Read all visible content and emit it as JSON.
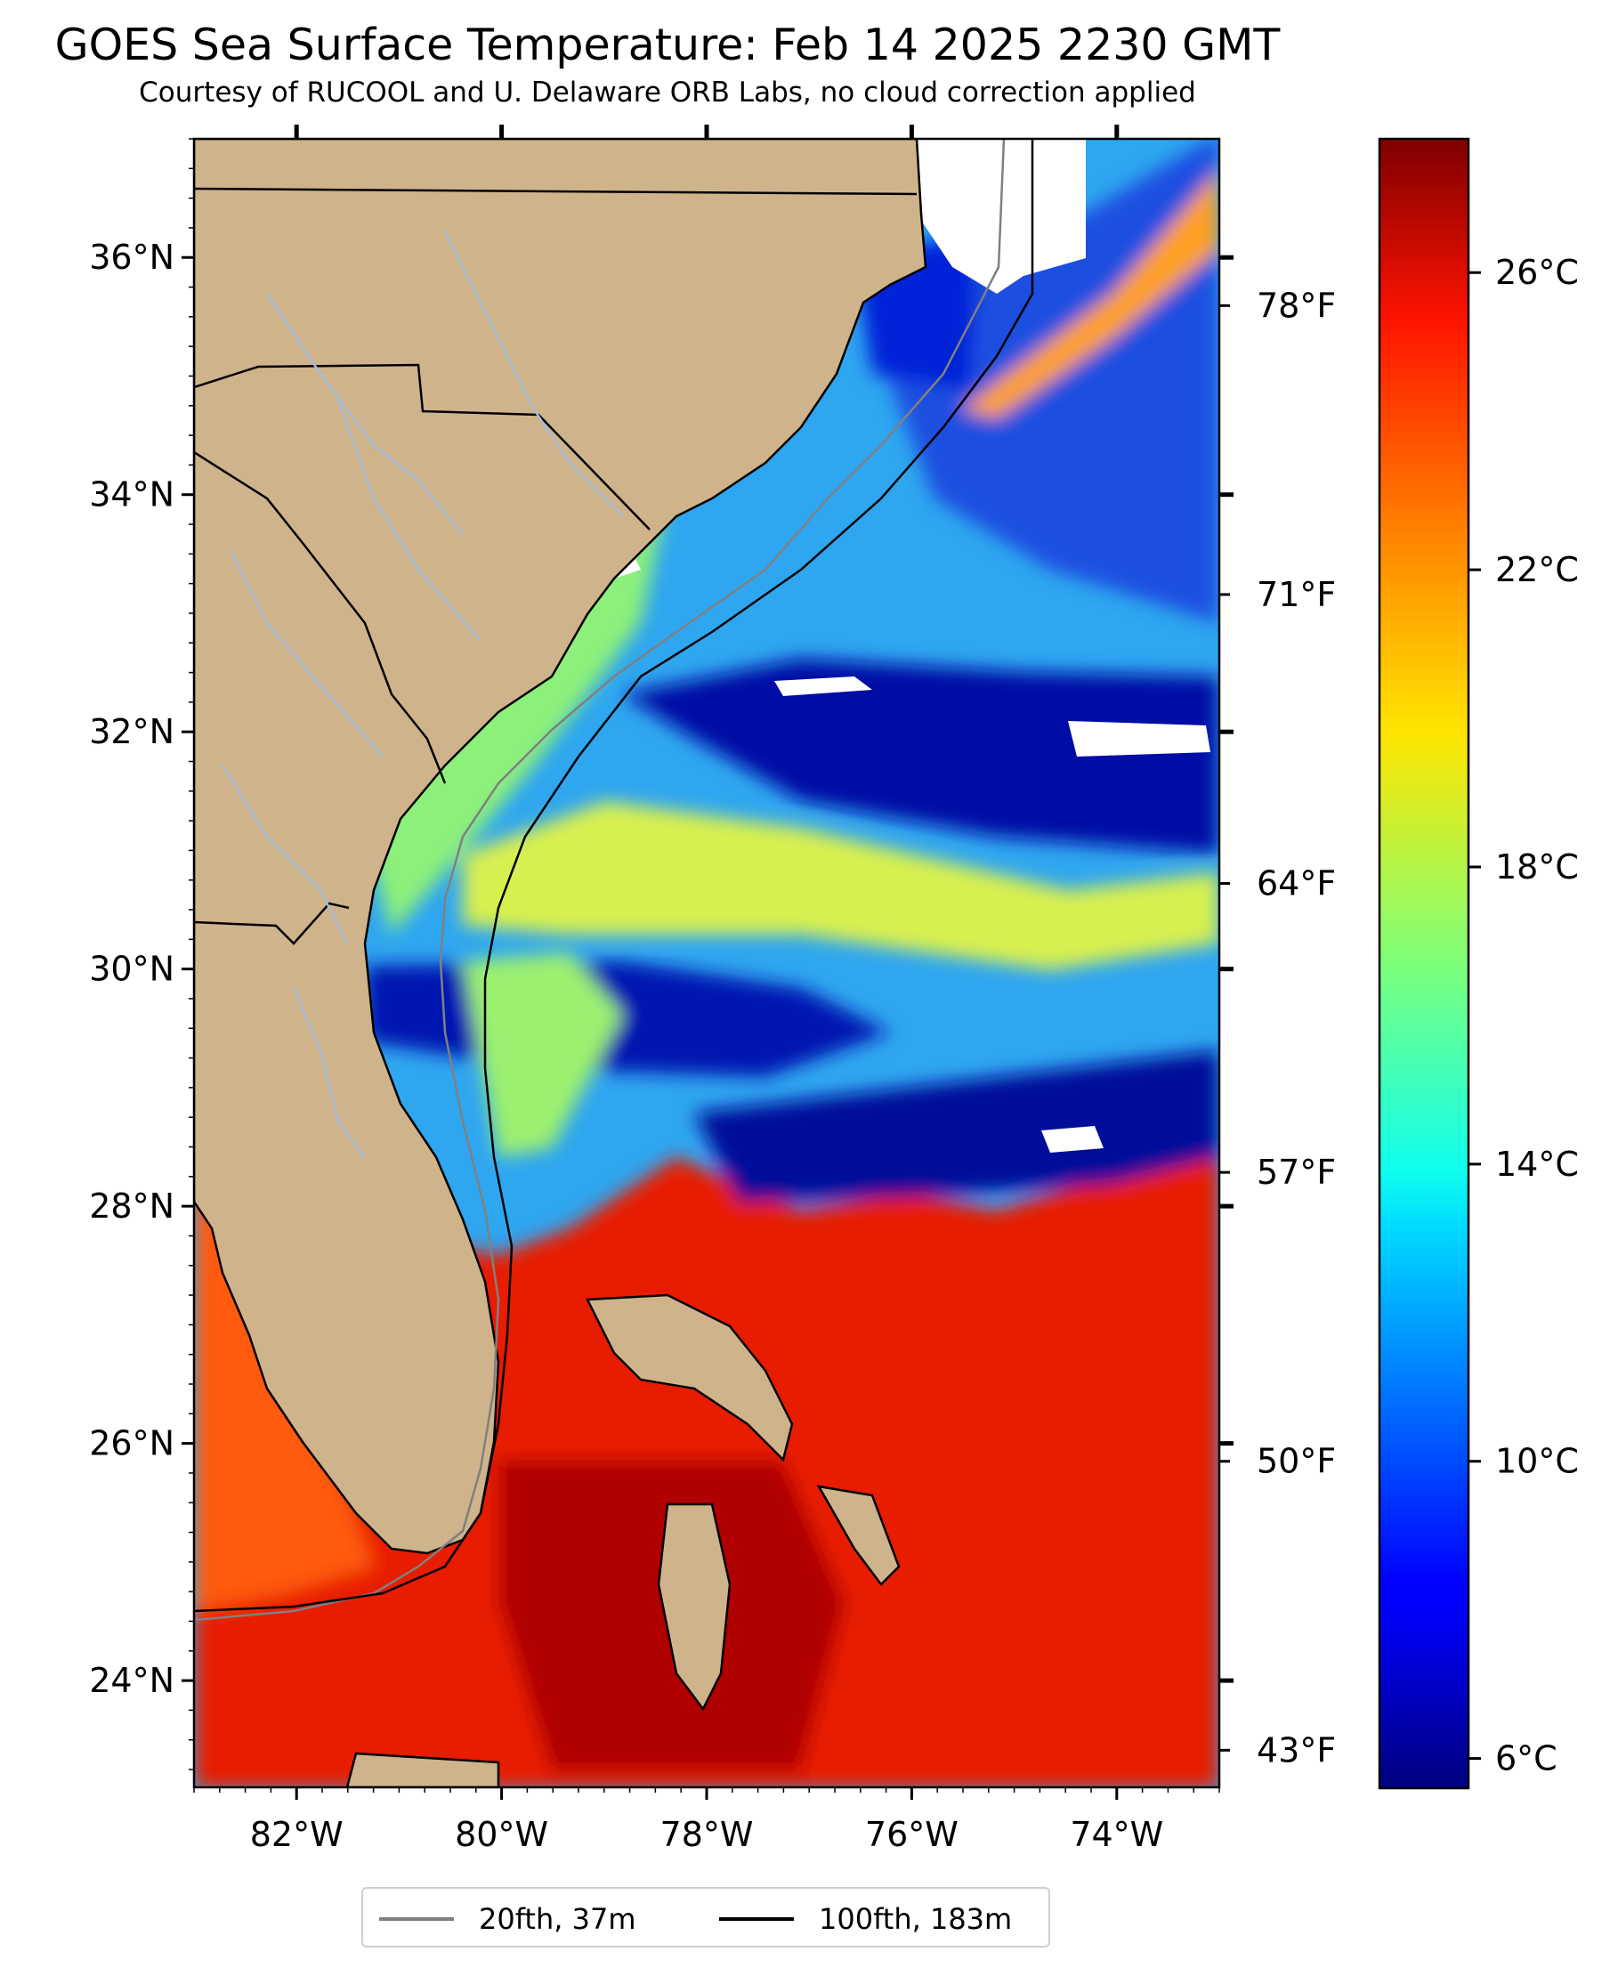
{
  "header": {
    "title": "GOES Sea Surface Temperature: Feb 14 2025 2230 GMT",
    "subtitle": "Courtesy of RUCOOL and U. Delaware ORB Labs, no cloud correction applied"
  },
  "map": {
    "lat_range": [
      23.1,
      37.0
    ],
    "lon_range": [
      -83.0,
      -73.0
    ],
    "lat_ticks": [
      {
        "lat": 24,
        "label": "24°N"
      },
      {
        "lat": 26,
        "label": "26°N"
      },
      {
        "lat": 28,
        "label": "28°N"
      },
      {
        "lat": 30,
        "label": "30°N"
      },
      {
        "lat": 32,
        "label": "32°N"
      },
      {
        "lat": 34,
        "label": "34°N"
      },
      {
        "lat": 36,
        "label": "36°N"
      }
    ],
    "lon_ticks": [
      {
        "lon": -82,
        "label": "82°W"
      },
      {
        "lon": -80,
        "label": "80°W"
      },
      {
        "lon": -78,
        "label": "78°W"
      },
      {
        "lon": -76,
        "label": "76°W"
      },
      {
        "lon": -74,
        "label": "74°W"
      }
    ],
    "fahrenheit_ticks": [
      {
        "f": 43,
        "label": "43°F"
      },
      {
        "f": 50,
        "label": "50°F"
      },
      {
        "f": 57,
        "label": "57°F"
      },
      {
        "f": 64,
        "label": "64°F"
      },
      {
        "f": 71,
        "label": "71°F"
      },
      {
        "f": 78,
        "label": "78°F"
      }
    ],
    "land_color": "#cfb38b",
    "river_color": "#a7bcd8",
    "cloud_color": "#ffffff"
  },
  "colorbar": {
    "range_c": [
      5.6,
      27.8
    ],
    "colormap": "jet",
    "ticks": [
      {
        "c": 6,
        "label": "6°C"
      },
      {
        "c": 10,
        "label": "10°C"
      },
      {
        "c": 14,
        "label": "14°C"
      },
      {
        "c": 18,
        "label": "18°C"
      },
      {
        "c": 22,
        "label": "22°C"
      },
      {
        "c": 26,
        "label": "26°C"
      }
    ]
  },
  "legend": {
    "items": [
      {
        "label": "20fth, 37m",
        "color": "#808080"
      },
      {
        "label": "100fth, 183m",
        "color": "#000000"
      }
    ]
  }
}
